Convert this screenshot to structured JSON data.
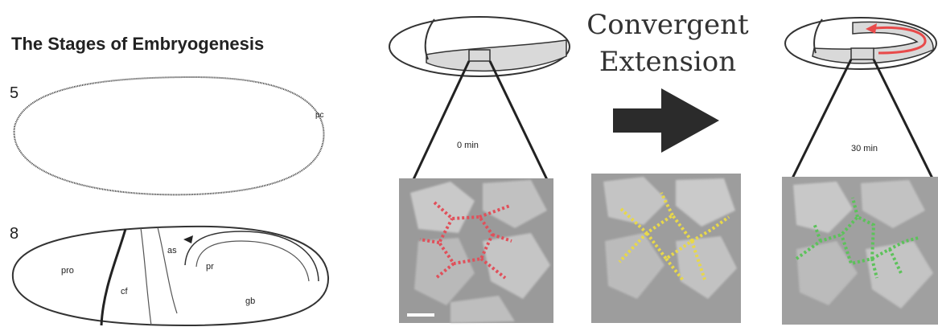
{
  "left_panel": {
    "title": "The Stages of Embryogenesis",
    "stage_top": {
      "number": "5",
      "labels": {
        "pc": "pc"
      }
    },
    "stage_bottom": {
      "number": "8",
      "labels": {
        "pro": "pro",
        "cf": "cf",
        "as": "as",
        "pr": "pr",
        "gb": "gb"
      }
    }
  },
  "right_panel": {
    "heading_line1": "Convergent",
    "heading_line2": "Extension",
    "time_before": "0 min",
    "time_after": "30 min"
  },
  "colors": {
    "outline": "#333333",
    "germband_fill": "#d9d9d9",
    "arrow": "#2b2b2b",
    "red_cells": "#e0505a",
    "yellow_cells": "#e8d84a",
    "green_cells": "#5cc25a",
    "curve_arrow": "#e84a4a"
  }
}
